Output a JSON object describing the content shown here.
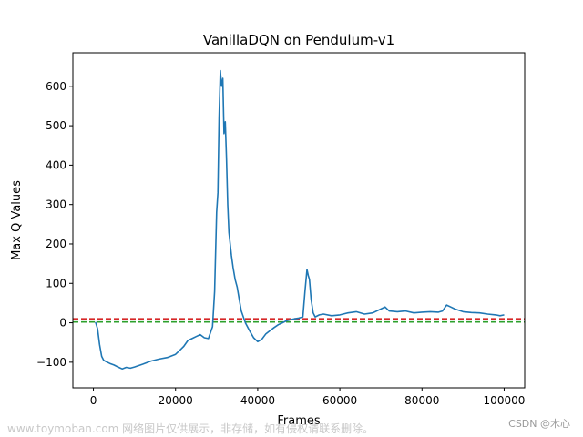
{
  "chart_data": {
    "type": "line",
    "title": "VanillaDQN on Pendulum-v1",
    "xlabel": "Frames",
    "ylabel": "Max Q Values",
    "xlim": [
      -5000,
      105000
    ],
    "ylim": [
      -165,
      685
    ],
    "xticks": [
      0,
      20000,
      40000,
      60000,
      80000,
      100000
    ],
    "xtick_labels": [
      "0",
      "20000",
      "40000",
      "60000",
      "80000",
      "100000"
    ],
    "yticks": [
      -100,
      0,
      100,
      200,
      300,
      400,
      500,
      600
    ],
    "ytick_labels": [
      "−100",
      "0",
      "100",
      "200",
      "300",
      "400",
      "500",
      "600"
    ],
    "grid": false,
    "series": [
      {
        "color": "#1f77b4",
        "style": "solid",
        "x": [
          500,
          1000,
          1500,
          2000,
          2500,
          3000,
          4000,
          5000,
          6000,
          7000,
          8000,
          9000,
          10000,
          12000,
          14000,
          16000,
          18000,
          20000,
          21000,
          22000,
          23000,
          24000,
          25000,
          26000,
          27000,
          28000,
          29000,
          29500,
          30000,
          30300,
          30600,
          30900,
          31200,
          31500,
          31800,
          32100,
          32400,
          32700,
          33000,
          33300,
          33600,
          34000,
          34500,
          35000,
          35500,
          36000,
          37000,
          38000,
          39000,
          40000,
          41000,
          42000,
          43000,
          44000,
          45000,
          46000,
          47000,
          48000,
          49000,
          50000,
          51000,
          51500,
          52000,
          52300,
          52600,
          53000,
          53500,
          54000,
          55000,
          56000,
          58000,
          60000,
          62000,
          64000,
          66000,
          68000,
          70000,
          71000,
          72000,
          74000,
          76000,
          78000,
          80000,
          82000,
          84000,
          85000,
          86000,
          87000,
          88000,
          90000,
          92000,
          94000,
          96000,
          98000,
          99000,
          100000
        ],
        "y": [
          2,
          -15,
          -55,
          -85,
          -95,
          -98,
          -103,
          -107,
          -112,
          -117,
          -113,
          -115,
          -112,
          -105,
          -97,
          -92,
          -88,
          -80,
          -70,
          -60,
          -45,
          -40,
          -35,
          -30,
          -38,
          -40,
          -10,
          80,
          280,
          330,
          520,
          640,
          600,
          620,
          480,
          510,
          420,
          300,
          230,
          200,
          170,
          140,
          110,
          90,
          60,
          30,
          0,
          -20,
          -38,
          -48,
          -42,
          -28,
          -20,
          -12,
          -5,
          0,
          5,
          8,
          10,
          12,
          15,
          80,
          135,
          120,
          110,
          60,
          25,
          15,
          20,
          22,
          18,
          20,
          25,
          28,
          22,
          25,
          35,
          40,
          30,
          28,
          30,
          25,
          27,
          28,
          27,
          30,
          45,
          40,
          35,
          28,
          26,
          25,
          22,
          20,
          18,
          20
        ]
      }
    ],
    "hlines": [
      {
        "y": 10,
        "color": "#d62728",
        "style": "dashed"
      },
      {
        "y": 2,
        "color": "#2ca02c",
        "style": "dashed"
      }
    ]
  },
  "watermark": {
    "left": "www.toymoban.com 网络图片仅供展示，非存储，如有侵权请联系删除。",
    "right": "CSDN @木心"
  }
}
